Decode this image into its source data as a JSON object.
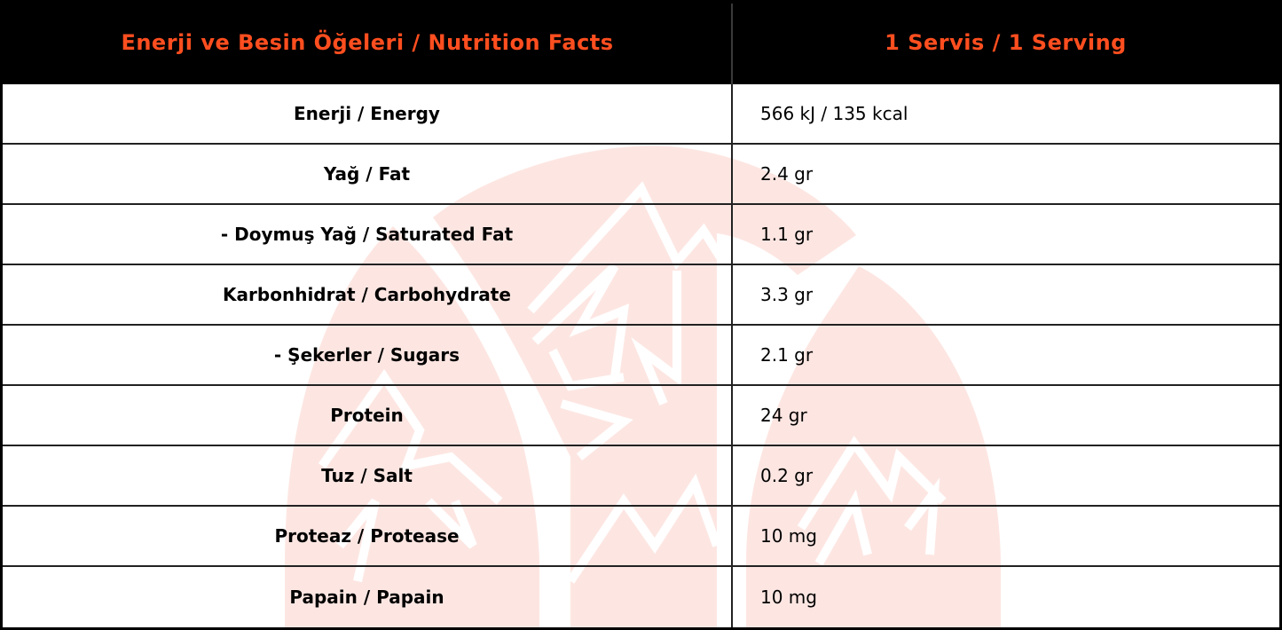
{
  "colors": {
    "header_background": "#000000",
    "header_text": "#FF4E1F",
    "body_background": "#FFFFFF",
    "body_text": "#000000",
    "watermark": "#FDE6E2",
    "grid_lines": "#222222"
  },
  "table": {
    "header": {
      "label_column": "Enerji ve Besin Öğeleri / Nutrition Facts",
      "value_column": "1 Servis / 1 Serving"
    },
    "rows": [
      {
        "label": "Enerji / Energy",
        "value": "566 kJ / 135 kcal"
      },
      {
        "label": "Yağ / Fat",
        "value": "2.4 gr"
      },
      {
        "label": "- Doymuş Yağ / Saturated Fat",
        "value": "1.1 gr"
      },
      {
        "label": "Karbonhidrat / Carbohydrate",
        "value": "3.3 gr"
      },
      {
        "label": "- Şekerler / Sugars",
        "value": "2.1 gr"
      },
      {
        "label": "Protein",
        "value": "24 gr"
      },
      {
        "label": "Tuz / Salt",
        "value": "0.2 gr"
      },
      {
        "label": "Proteaz / Protease",
        "value": "10 mg"
      },
      {
        "label": "Papain / Papain",
        "value": "10 mg"
      }
    ]
  },
  "watermark": {
    "icon": "mountain-logo-icon"
  }
}
